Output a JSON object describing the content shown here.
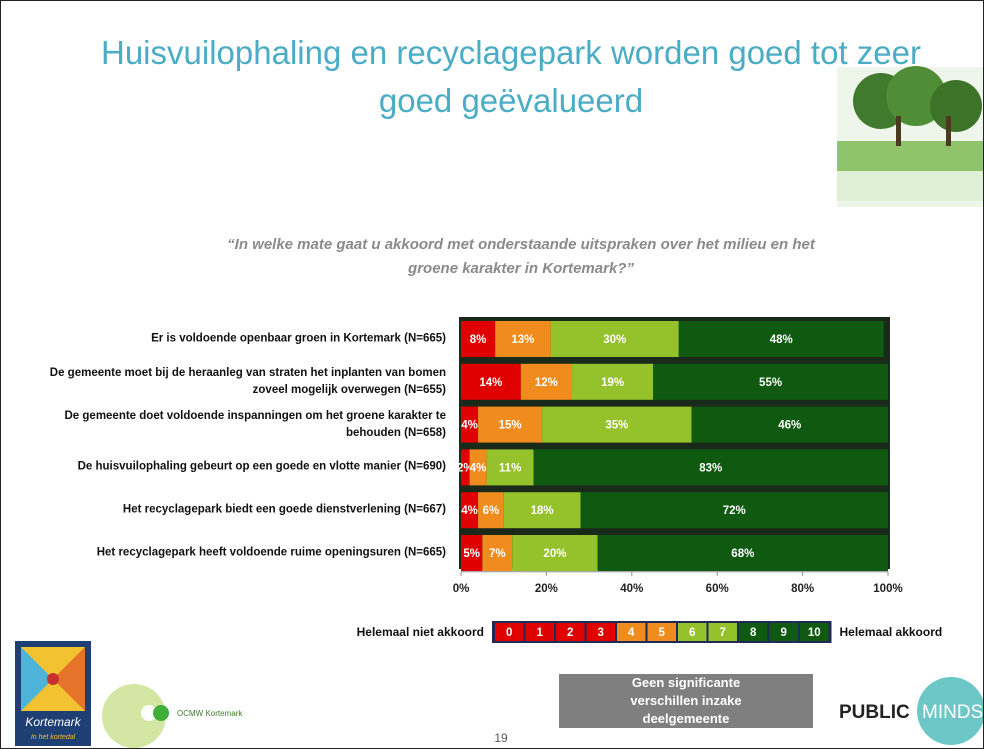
{
  "page": {
    "logo_left_name": "Kortemark",
    "logo_left_tagline": "In het kortedal",
    "logo_mid_name": "OCMW Kortemark",
    "logo_right_a": "PUBLIC",
    "logo_right_b": "MINDS",
    "note": "Geen significante verschillen inzake deelgemeente",
    "page_number": "19"
  },
  "chart_data": {
    "type": "stacked-bar-horizontal",
    "title": "Huisvuilophaling en recyclagepark worden goed tot zeer goed geëvalueerd",
    "subtitle": "“In welke mate gaat u akkoord met onderstaande uitspraken over het milieu en het groene karakter in Kortemark?”",
    "categories": [
      "Er is voldoende openbaar groen in Kortemark (N=665)",
      "De gemeente moet bij de heraanleg van straten het inplanten van bomen zoveel mogelijk overwegen (N=655)",
      "De gemeente doet voldoende inspanningen om het groene karakter te behouden (N=658)",
      "De huisvuilophaling gebeurt op een goede en vlotte manier (N=690)",
      "Het recyclagepark biedt een goede dienstverlening (N=667)",
      "Het recyclagepark heeft voldoende ruime openingsuren (N=665)"
    ],
    "series": [
      {
        "color": "#e00000",
        "values": [
          8,
          14,
          4,
          2,
          4,
          5
        ],
        "value_labels": [
          "8%",
          "14%",
          "4%",
          "2%",
          "4%",
          "5%"
        ]
      },
      {
        "color": "#f08c1e",
        "values": [
          13,
          12,
          15,
          4,
          6,
          7
        ],
        "value_labels": [
          "13%",
          "12%",
          "15%",
          "4%",
          "6%",
          "7%"
        ]
      },
      {
        "color": "#95c12b",
        "values": [
          30,
          19,
          35,
          11,
          18,
          20
        ],
        "value_labels": [
          "30%",
          "19%",
          "35%",
          "11%",
          "18%",
          "20%"
        ]
      },
      {
        "color": "#0f5a10",
        "values": [
          48,
          55,
          46,
          83,
          72,
          68
        ],
        "value_labels": [
          "48%",
          "55%",
          "46%",
          "83%",
          "72%",
          "68%"
        ]
      }
    ],
    "xlim": [
      0,
      100
    ],
    "xticks": [
      {
        "value": 0,
        "label": "0%"
      },
      {
        "value": 20,
        "label": "20%"
      },
      {
        "value": 40,
        "label": "40%"
      },
      {
        "value": 60,
        "label": "60%"
      },
      {
        "value": 80,
        "label": "80%"
      },
      {
        "value": 100,
        "label": "100%"
      }
    ],
    "scale_legend": {
      "left_label": "Helemaal niet akkoord",
      "right_label": "Helemaal akkoord",
      "items": [
        {
          "label": "0",
          "color": "#e00000"
        },
        {
          "label": "1",
          "color": "#e00000"
        },
        {
          "label": "2",
          "color": "#e00000"
        },
        {
          "label": "3",
          "color": "#e00000"
        },
        {
          "label": "4",
          "color": "#f08c1e"
        },
        {
          "label": "5",
          "color": "#f08c1e"
        },
        {
          "label": "6",
          "color": "#95c12b"
        },
        {
          "label": "7",
          "color": "#95c12b"
        },
        {
          "label": "8",
          "color": "#0f5a10"
        },
        {
          "label": "9",
          "color": "#0f5a10"
        },
        {
          "label": "10",
          "color": "#0f5a10"
        }
      ]
    }
  }
}
